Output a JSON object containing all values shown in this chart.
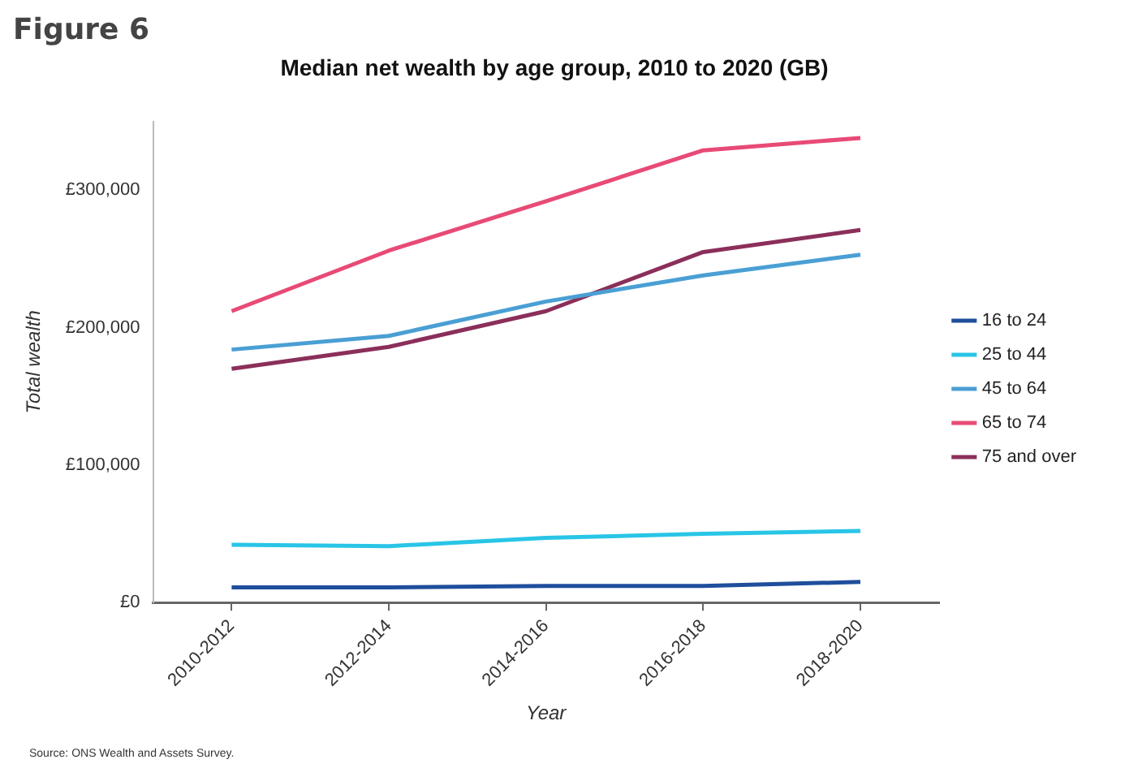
{
  "chart_data": {
    "type": "line",
    "title": "Median net wealth by age group, 2010 to 2020 (GB)",
    "xlabel": "Year",
    "ylabel": "Total wealth",
    "annotations": [
      "Figure 6",
      "Source: ONS Wealth and Assets Survey."
    ],
    "categories": [
      "2010-2012",
      "2012-2014",
      "2014-2016",
      "2016-2018",
      "2018-2020"
    ],
    "series": [
      {
        "name": "16 to 24",
        "color": "#1f4e9c",
        "values": [
          11000,
          11000,
          12000,
          12000,
          15000
        ]
      },
      {
        "name": "25 to 44",
        "color": "#29c5e6",
        "values": [
          42000,
          41000,
          47000,
          50000,
          52000
        ]
      },
      {
        "name": "45 to 64",
        "color": "#4a9fd4",
        "values": [
          184000,
          194000,
          219000,
          238000,
          253000
        ]
      },
      {
        "name": "65 to 74",
        "color": "#e84a76",
        "values": [
          212000,
          256000,
          292000,
          329000,
          338000
        ]
      },
      {
        "name": "75 and over",
        "color": "#8b2f5a",
        "values": [
          170000,
          186000,
          212000,
          255000,
          271000
        ]
      }
    ],
    "ylim": [
      0,
      350000
    ],
    "yticks": [
      {
        "value": 0,
        "label": "£0"
      },
      {
        "value": 100000,
        "label": "£100,000"
      },
      {
        "value": 200000,
        "label": "£200,000"
      },
      {
        "value": 300000,
        "label": "£300,000"
      }
    ],
    "grid": false,
    "legend": "right",
    "marker": "none",
    "line_style": "solid"
  }
}
